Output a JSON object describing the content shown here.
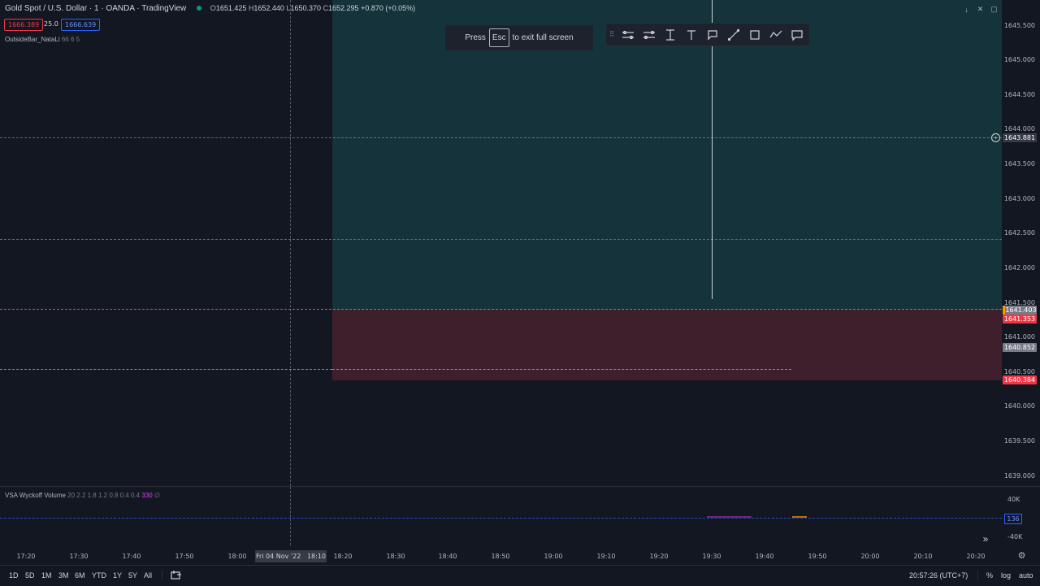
{
  "header": {
    "symbol": "Gold Spot / U.S. Dollar · 1 · OANDA · TradingView",
    "ohlc": {
      "o_label": "O",
      "o": "1651.425",
      "h_label": "H",
      "h": "1652.440",
      "l_label": "L",
      "l": "1650.370",
      "c_label": "C",
      "c": "1652.295",
      "change": "+0.870 (+0.05%)"
    },
    "badges": {
      "bid": "1666.389",
      "spread": "25.0",
      "ask": "1666.639"
    }
  },
  "indicator": {
    "name": "OutsideBar_NataLi",
    "params": "66 6 5"
  },
  "toast": {
    "pre": "Press",
    "key": "Esc",
    "post": "to exit full screen"
  },
  "toolbar": {
    "icons": [
      "grip-icon",
      "long-position-icon",
      "short-position-icon",
      "text-cursor-icon",
      "text-tool-icon",
      "flag-note-icon",
      "trend-line-icon",
      "rectangle-icon",
      "path-icon",
      "callout-icon"
    ]
  },
  "top_controls": {
    "icons": [
      "arrow-down-icon",
      "collapse-icon",
      "restore-icon"
    ],
    "glyphs": [
      "↓",
      "✕",
      "▢"
    ]
  },
  "price_axis": {
    "ticks": [
      "1645.500",
      "1645.000",
      "1644.500",
      "1644.000",
      "1643.500",
      "1643.000",
      "1642.500",
      "1642.000",
      "1641.500",
      "1641.000",
      "1640.500",
      "1640.000",
      "1639.500",
      "1639.000"
    ],
    "labels": {
      "crosshair": "1643.881",
      "orange": "1641.403",
      "red_top": "1641.353",
      "current": "1640.852",
      "red_bottom": "1640.384"
    }
  },
  "volume": {
    "name": "VSA Wyckoff Volume",
    "params": "20 2.2 1.8 1.2 0.8 0.4 0.4",
    "value": "330",
    "extra": "∅",
    "ticks": {
      "top": "40K",
      "bottom": "-40K"
    },
    "current": "136"
  },
  "time_axis": {
    "ticks": [
      "17:20",
      "17:30",
      "17:40",
      "17:50",
      "18:00",
      "18:20",
      "18:30",
      "18:40",
      "18:50",
      "19:00",
      "19:10",
      "19:20",
      "19:30",
      "19:40",
      "19:50",
      "20:00",
      "20:10",
      "20:20"
    ],
    "current": "Fri 04 Nov '22   18:10"
  },
  "bottom_bar": {
    "ranges": [
      "1D",
      "5D",
      "1M",
      "3M",
      "6M",
      "YTD",
      "1Y",
      "5Y",
      "All"
    ],
    "clock": "20:57:26 (UTC+7)",
    "percent": "%",
    "log": "log",
    "auto": "auto"
  },
  "colors": {
    "background": "#131722",
    "green_zone": "#15333a",
    "red_zone": "#3f1f2b",
    "red_label": "#f23645",
    "orange_line": "#ff9800",
    "green_line": "#4caf50",
    "grey_label": "#787b86"
  }
}
